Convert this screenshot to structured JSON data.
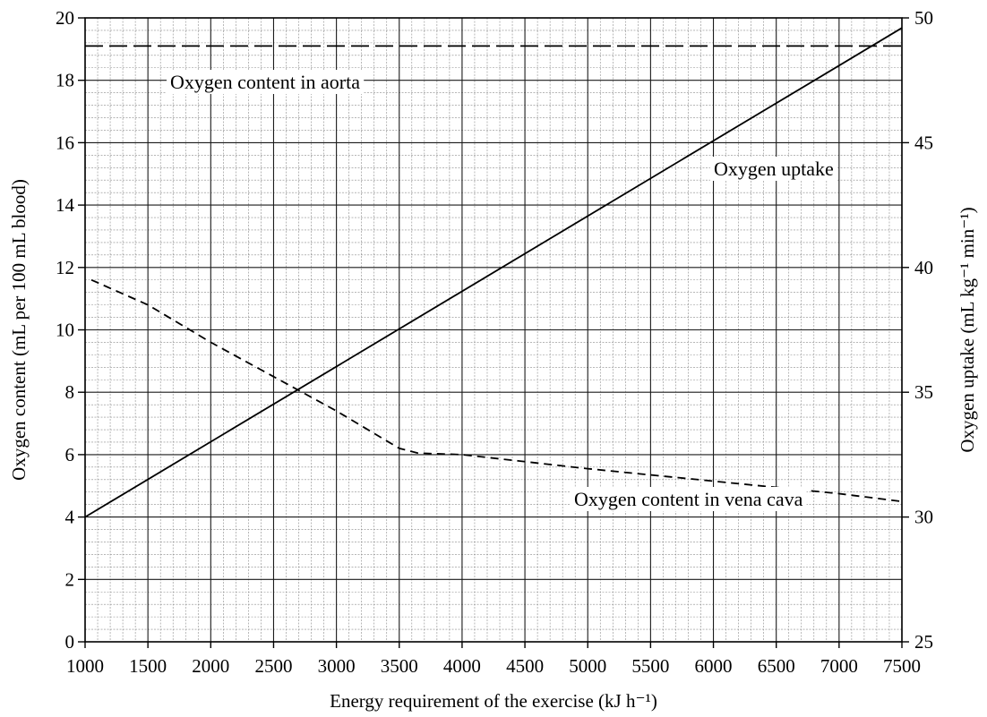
{
  "chart_data": {
    "type": "line",
    "xlabel": "Energy requirement of the exercise (kJ h⁻¹)",
    "ylabel_left": "Oxygen content (mL per 100 mL blood)",
    "ylabel_right": "Oxygen uptake (mL kg⁻¹ min⁻¹)",
    "xlim": [
      1000,
      7500
    ],
    "ylim_left": [
      0,
      20
    ],
    "ylim_right": [
      25,
      50
    ],
    "x_ticks": [
      "1000",
      "1500",
      "2000",
      "2500",
      "3000",
      "3500",
      "4000",
      "4500",
      "5000",
      "5500",
      "6000",
      "6500",
      "7000",
      "7500"
    ],
    "y_left_ticks": [
      "0",
      "2",
      "4",
      "6",
      "8",
      "10",
      "12",
      "14",
      "16",
      "18",
      "20"
    ],
    "y_right_ticks": [
      "25",
      "30",
      "35",
      "40",
      "45",
      "50"
    ],
    "grid": true,
    "series": [
      {
        "name": "Oxygen content in aorta",
        "axis": "left",
        "style": "long-dash",
        "points": [
          [
            1000,
            19.1
          ],
          [
            7500,
            19.1
          ]
        ]
      },
      {
        "name": "Oxygen uptake",
        "axis": "right",
        "style": "solid",
        "points": [
          [
            1000,
            30.0
          ],
          [
            7500,
            49.6
          ]
        ]
      },
      {
        "name": "Oxygen content in vena cava",
        "axis": "left",
        "style": "short-dash",
        "points": [
          [
            1050,
            11.6
          ],
          [
            1500,
            10.8
          ],
          [
            2000,
            9.6
          ],
          [
            2500,
            8.5
          ],
          [
            3000,
            7.4
          ],
          [
            3500,
            6.2
          ],
          [
            3650,
            6.05
          ],
          [
            4000,
            6.0
          ],
          [
            5000,
            5.55
          ],
          [
            6000,
            5.15
          ],
          [
            7000,
            4.75
          ],
          [
            7500,
            4.5
          ]
        ]
      }
    ],
    "annotations": [
      "Oxygen content in aorta",
      "Oxygen uptake",
      "Oxygen content in vena cava"
    ]
  }
}
